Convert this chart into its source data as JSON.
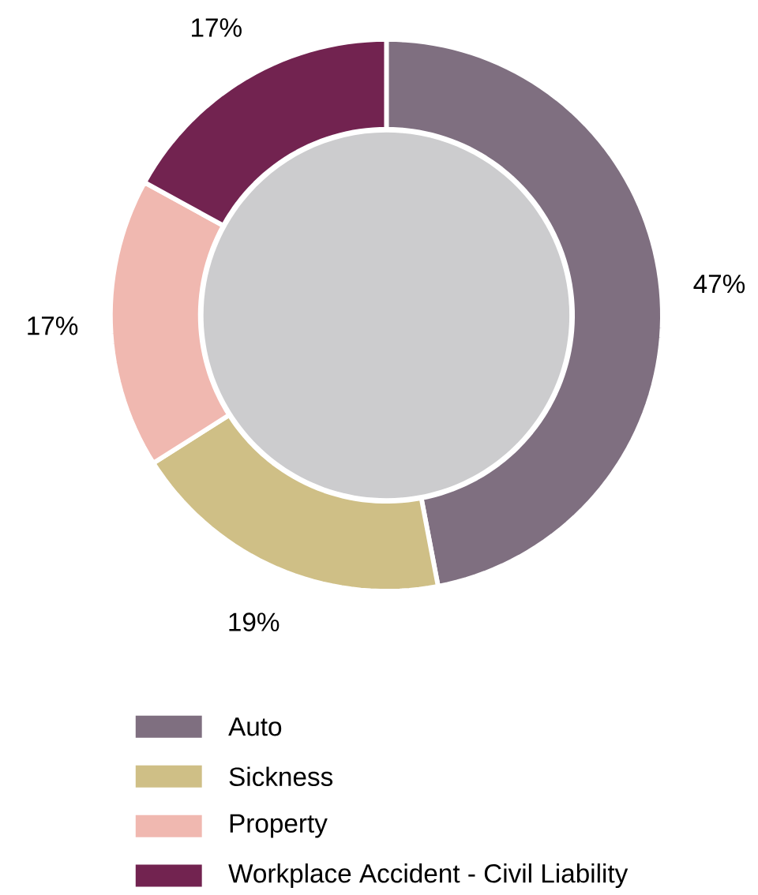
{
  "chart_data": {
    "type": "donut",
    "categories": [
      "Auto",
      "Sickness",
      "Property",
      "Workplace Accident - Civil Liability"
    ],
    "values": [
      47,
      19,
      17,
      17
    ],
    "colors": [
      "#7f6f80",
      "#cfbf86",
      "#f0b8b0",
      "#722350"
    ],
    "value_labels": [
      "47%",
      "19%",
      "17%",
      "17%"
    ],
    "legend": "bottom"
  }
}
